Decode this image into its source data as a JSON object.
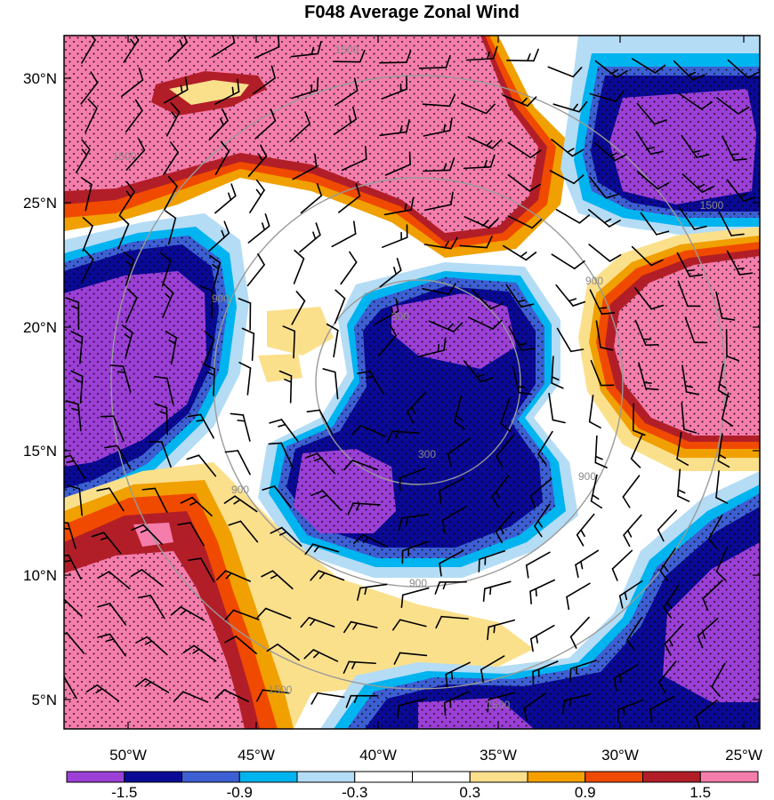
{
  "title": "F048 Average Zonal Wind",
  "map": {
    "lon_ticks": [
      "50°W",
      "45°W",
      "40°W",
      "35°W",
      "30°W",
      "25°W"
    ],
    "lat_ticks": [
      "30°N",
      "25°N",
      "20°N",
      "15°N",
      "10°N",
      "5°N"
    ],
    "contour_labels": [
      "1500",
      "1500",
      "1500",
      "900",
      "900",
      "900",
      "900",
      "900",
      "300",
      "300",
      "1500",
      "1500"
    ]
  },
  "colorbar": {
    "labels": [
      "-1.5",
      "-0.9",
      "-0.3",
      "0.3",
      "0.9",
      "1.5"
    ],
    "colors": [
      "#9b3fd6",
      "#0a0a96",
      "#3d5fd4",
      "#00b4f0",
      "#b4dcf5",
      "#ffffff",
      "#ffffff",
      "#fbe08c",
      "#f5a000",
      "#f04a00",
      "#b21e28",
      "#f57dab"
    ]
  },
  "colors": {
    "contour_line": "#9a9a9a",
    "barb": "#000000"
  }
}
